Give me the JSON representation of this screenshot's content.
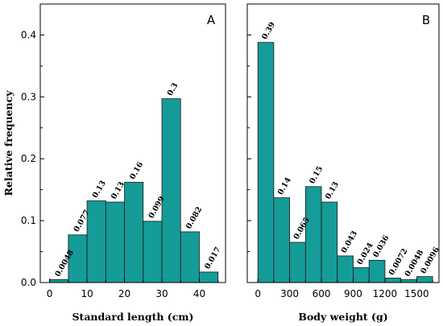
{
  "colors": {
    "bar_fill": "#159b98",
    "bar_stroke": "#1a1a1a",
    "axis": "#000000"
  },
  "y_axis_title": "Relative frequency",
  "chart_data": [
    {
      "type": "bar",
      "panel": "A",
      "xlabel": "Standard length (cm)",
      "ylabel": "Relative frequency",
      "xlim": [
        -2.5,
        47
      ],
      "ylim": [
        0,
        0.45
      ],
      "xticks": [
        "0",
        "10",
        "20",
        "30",
        "40"
      ],
      "yticks": [
        "0.0",
        "0.1",
        "0.2",
        "0.3",
        "0.4"
      ],
      "grid": false,
      "bins": [
        {
          "start": 0,
          "end": 5,
          "value": 0.0048,
          "label": "0.0048"
        },
        {
          "start": 5,
          "end": 10,
          "value": 0.077,
          "label": "0.077"
        },
        {
          "start": 10,
          "end": 15,
          "value": 0.132,
          "label": "0.13"
        },
        {
          "start": 15,
          "end": 20,
          "value": 0.13,
          "label": "0.13"
        },
        {
          "start": 20,
          "end": 25,
          "value": 0.162,
          "label": "0.16"
        },
        {
          "start": 25,
          "end": 30,
          "value": 0.099,
          "label": "0.099"
        },
        {
          "start": 30,
          "end": 35,
          "value": 0.297,
          "label": "0.3"
        },
        {
          "start": 35,
          "end": 40,
          "value": 0.082,
          "label": "0.082"
        },
        {
          "start": 40,
          "end": 45,
          "value": 0.017,
          "label": "0.017"
        }
      ]
    },
    {
      "type": "bar",
      "panel": "B",
      "xlabel": "Body weight (g)",
      "ylabel": "",
      "xlim": [
        -100,
        1710
      ],
      "ylim": [
        0,
        0.45
      ],
      "xticks": [
        "0",
        "300",
        "600",
        "900",
        "1200",
        "1500"
      ],
      "grid": false,
      "bins": [
        {
          "start": 0,
          "end": 150,
          "value": 0.388,
          "label": "0.39"
        },
        {
          "start": 150,
          "end": 300,
          "value": 0.137,
          "label": "0.14"
        },
        {
          "start": 300,
          "end": 450,
          "value": 0.065,
          "label": "0.065"
        },
        {
          "start": 450,
          "end": 600,
          "value": 0.155,
          "label": "0.15"
        },
        {
          "start": 600,
          "end": 750,
          "value": 0.13,
          "label": "0.13"
        },
        {
          "start": 750,
          "end": 900,
          "value": 0.043,
          "label": "0.043"
        },
        {
          "start": 900,
          "end": 1050,
          "value": 0.024,
          "label": "0.024"
        },
        {
          "start": 1050,
          "end": 1200,
          "value": 0.036,
          "label": "0.036"
        },
        {
          "start": 1200,
          "end": 1350,
          "value": 0.0072,
          "label": "0.0072"
        },
        {
          "start": 1350,
          "end": 1500,
          "value": 0.0048,
          "label": "0.0048"
        },
        {
          "start": 1500,
          "end": 1650,
          "value": 0.0096,
          "label": "0.0096"
        }
      ]
    }
  ]
}
